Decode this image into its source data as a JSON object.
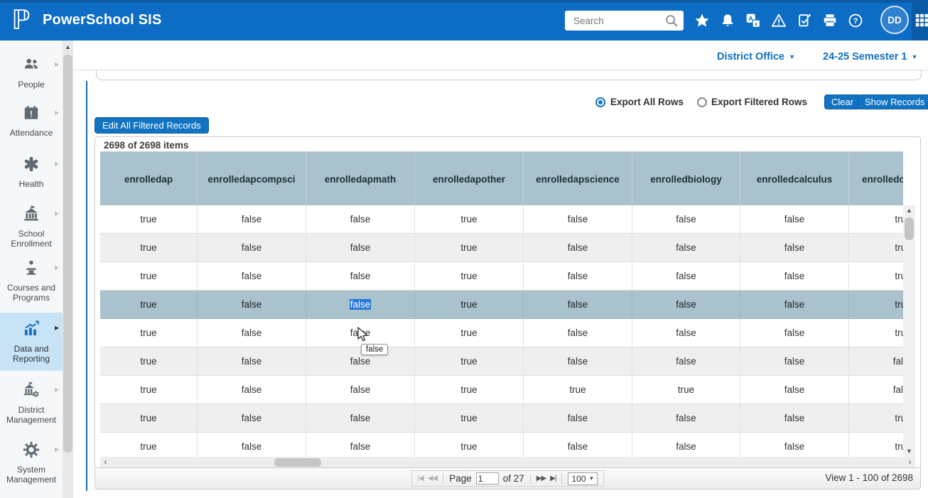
{
  "header": {
    "app_title": "PowerSchool SIS",
    "search": {
      "placeholder": "Search"
    },
    "avatar_initials": "DD",
    "icons": [
      {
        "name": "favorites-star-icon"
      },
      {
        "name": "notifications-bell-icon"
      },
      {
        "name": "translation-icon"
      },
      {
        "name": "alerts-warning-icon"
      },
      {
        "name": "report-clipboard-icon"
      },
      {
        "name": "print-icon"
      },
      {
        "name": "help-icon"
      }
    ]
  },
  "context_bar": {
    "school_selector": "District Office",
    "term_selector": "24-25 Semester 1"
  },
  "sidebar": {
    "items": [
      {
        "label": "People",
        "icon": "people-icon",
        "active": false
      },
      {
        "label": "Attendance",
        "icon": "attendance-icon",
        "active": false
      },
      {
        "label": "Health",
        "icon": "health-icon",
        "active": false
      },
      {
        "label": "School Enrollment",
        "icon": "school-enrollment-icon",
        "active": false
      },
      {
        "label": "Courses and Programs",
        "icon": "courses-programs-icon",
        "active": false
      },
      {
        "label": "Data and Reporting",
        "icon": "data-reporting-icon",
        "active": true
      },
      {
        "label": "District Management",
        "icon": "district-management-icon",
        "active": false
      },
      {
        "label": "System Management",
        "icon": "system-management-icon",
        "active": false
      }
    ]
  },
  "export_controls": {
    "options": [
      {
        "label": "Export All Rows",
        "selected": true
      },
      {
        "label": "Export Filtered Rows",
        "selected": false
      }
    ],
    "clear_button": "Clear",
    "show_records_button": "Show Records"
  },
  "edit_records_button": "Edit All Filtered Records",
  "grid": {
    "items_summary": "2698 of 2698 items",
    "columns": [
      "enrolledap",
      "enrolledapcompsci",
      "enrolledapmath",
      "enrolledapother",
      "enrolledapscience",
      "enrolledbiology",
      "enrolledcalculus",
      "enrolledche"
    ],
    "rows": [
      [
        "true",
        "false",
        "false",
        "true",
        "false",
        "false",
        "false",
        "true"
      ],
      [
        "true",
        "false",
        "false",
        "true",
        "false",
        "false",
        "false",
        "true"
      ],
      [
        "true",
        "false",
        "false",
        "true",
        "false",
        "false",
        "false",
        "true"
      ],
      [
        "true",
        "false",
        "false",
        "true",
        "false",
        "false",
        "false",
        "true"
      ],
      [
        "true",
        "false",
        "false",
        "true",
        "false",
        "false",
        "false",
        "true"
      ],
      [
        "true",
        "false",
        "false",
        "true",
        "false",
        "false",
        "false",
        "false"
      ],
      [
        "true",
        "false",
        "false",
        "true",
        "true",
        "true",
        "false",
        "false"
      ],
      [
        "true",
        "false",
        "false",
        "true",
        "false",
        "false",
        "false",
        "true"
      ],
      [
        "true",
        "false",
        "false",
        "true",
        "false",
        "false",
        "false",
        "true"
      ]
    ],
    "selected_row_index": 3,
    "selected_cell": {
      "row": 3,
      "col": 2
    },
    "tooltip_text": "false",
    "pager": {
      "page_label": "Page",
      "page_value": "1",
      "of_label": "of 27",
      "page_size_value": "100",
      "view_summary": "View 1 - 100 of 2698"
    }
  },
  "colors": {
    "header_blue": "#0d6cc4",
    "accent_blue": "#1173c1",
    "active_nav_bg": "#c9e3f6",
    "table_header_bg": "#a9c2cd",
    "selected_row_bg": "#a9c2cd",
    "text_selection_bg": "#2677d8"
  }
}
